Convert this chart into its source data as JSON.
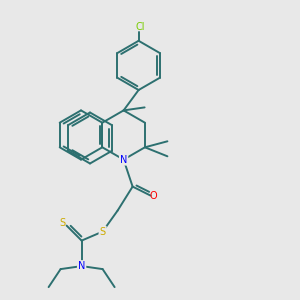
{
  "background_color": "#e8e8e8",
  "bond_color": "#2d7070",
  "bond_lw": 1.4,
  "atom_colors": {
    "N": "#0000ff",
    "O": "#ff0000",
    "S": "#ccaa00",
    "Cl": "#77cc00"
  }
}
